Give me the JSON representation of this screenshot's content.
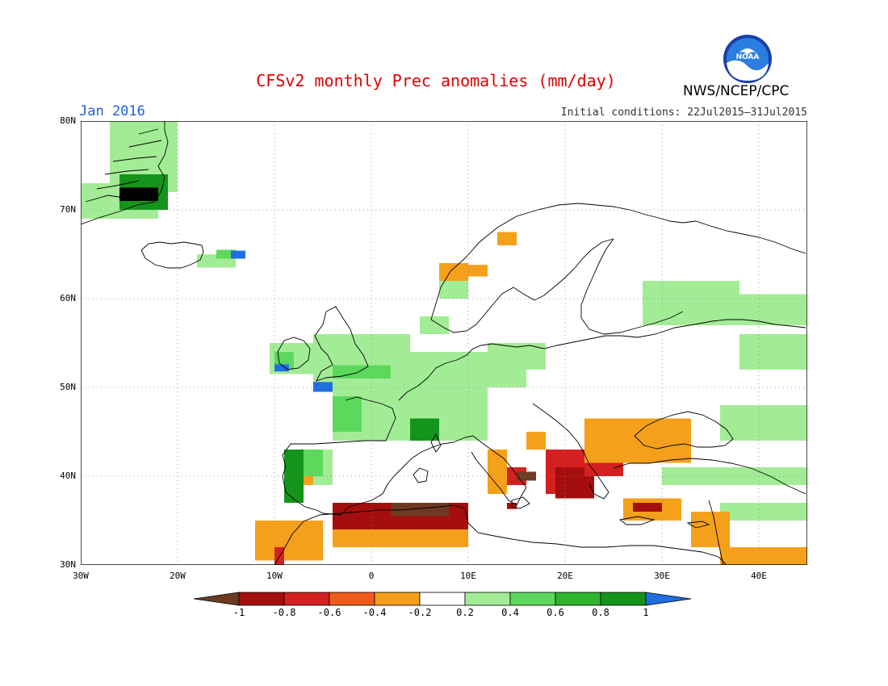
{
  "title": "CFSv2 monthly Prec anomalies (mm/day)",
  "agency": "NWS/NCEP/CPC",
  "logo_text": "NOAA",
  "valid_month": "Jan 2016",
  "initial_conditions": "Initial conditions: 22Jul2015–31Jul2015",
  "map": {
    "lon_range": [
      -30,
      45
    ],
    "lat_range": [
      30,
      80
    ],
    "grid": true,
    "lat_labels": [
      "80N",
      "70N",
      "60N",
      "50N",
      "40N",
      "30N"
    ],
    "lon_labels": [
      "30W",
      "20W",
      "10W",
      "0",
      "10E",
      "20E",
      "30E",
      "40E"
    ]
  },
  "colorbar": {
    "labels": [
      "-1",
      "-0.8",
      "-0.6",
      "-0.4",
      "-0.2",
      "0.2",
      "0.4",
      "0.6",
      "0.8",
      "1"
    ],
    "colors": [
      "#6e3b22",
      "#a50e0e",
      "#d42020",
      "#f25a1a",
      "#f5a01a",
      "#ffffff",
      "#a3ec96",
      "#5cd95c",
      "#2db52d",
      "#15941c",
      "#1f6fe0"
    ]
  }
}
